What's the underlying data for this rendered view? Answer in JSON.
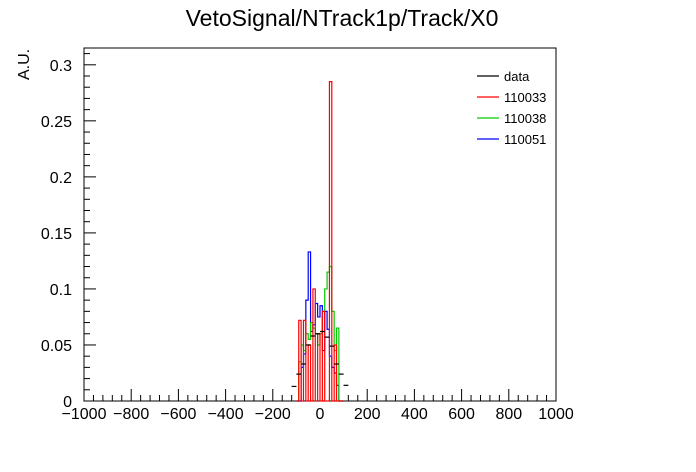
{
  "chart_data": {
    "type": "step",
    "title": "VetoSignal/NTrack1p/Track/X0",
    "xlabel": "",
    "ylabel": "A.U.",
    "xlim": [
      -1000,
      1000
    ],
    "ylim": [
      0,
      0.315
    ],
    "x_ticks": [
      "−1000",
      "−800",
      "−600",
      "−400",
      "−200",
      "0",
      "200",
      "400",
      "600",
      "800",
      "1000"
    ],
    "y_ticks": [
      "0",
      "0.05",
      "0.1",
      "0.15",
      "0.2",
      "0.25",
      "0.3"
    ],
    "grid": false,
    "legend_position": "top-right",
    "colors": {
      "data": "#000000",
      "110033": "#ff0000",
      "110038": "#00cc00",
      "110051": "#0000ff"
    },
    "series": [
      {
        "name": "data",
        "style": "points",
        "x": [
          -110,
          -90,
          -70,
          -50,
          -30,
          -10,
          10,
          30,
          50,
          70,
          90,
          110
        ],
        "values": [
          0.013,
          0.024,
          0.033,
          0.05,
          0.058,
          0.06,
          0.062,
          0.057,
          0.049,
          0.033,
          0.024,
          0.014
        ]
      },
      {
        "name": "110033",
        "style": "step",
        "bin_edges": [
          -100,
          -90,
          -80,
          -70,
          -60,
          -50,
          -40,
          -30,
          -20,
          -10,
          0,
          10,
          20,
          30,
          40,
          50,
          60,
          70,
          80,
          90,
          100
        ],
        "values": [
          0,
          0.072,
          0,
          0.072,
          0,
          0.05,
          0,
          0.1,
          0,
          0.06,
          0,
          0.08,
          0,
          0,
          0.285,
          0,
          0.05,
          0,
          0,
          0
        ]
      },
      {
        "name": "110038",
        "style": "step",
        "bin_edges": [
          -100,
          -90,
          -80,
          -70,
          -60,
          -50,
          -40,
          -30,
          -20,
          -10,
          0,
          10,
          20,
          30,
          40,
          50,
          60,
          70,
          80,
          90,
          100
        ],
        "values": [
          0,
          0.035,
          0.05,
          0.045,
          0.06,
          0.055,
          0.07,
          0.065,
          0.06,
          0.05,
          0.06,
          0.08,
          0.1,
          0.115,
          0.12,
          0.08,
          0.045,
          0.065,
          0,
          0
        ]
      },
      {
        "name": "110051",
        "style": "step",
        "bin_edges": [
          -100,
          -90,
          -80,
          -70,
          -60,
          -50,
          -40,
          -30,
          -20,
          -10,
          0,
          10,
          20,
          30,
          40,
          50,
          60,
          70,
          80,
          90,
          100
        ],
        "values": [
          0,
          0,
          0.03,
          0.042,
          0.09,
          0.133,
          0.062,
          0.068,
          0.087,
          0.075,
          0.085,
          0.045,
          0.08,
          0.064,
          0.04,
          0.03,
          0.025,
          0.014,
          0,
          0
        ]
      }
    ]
  }
}
